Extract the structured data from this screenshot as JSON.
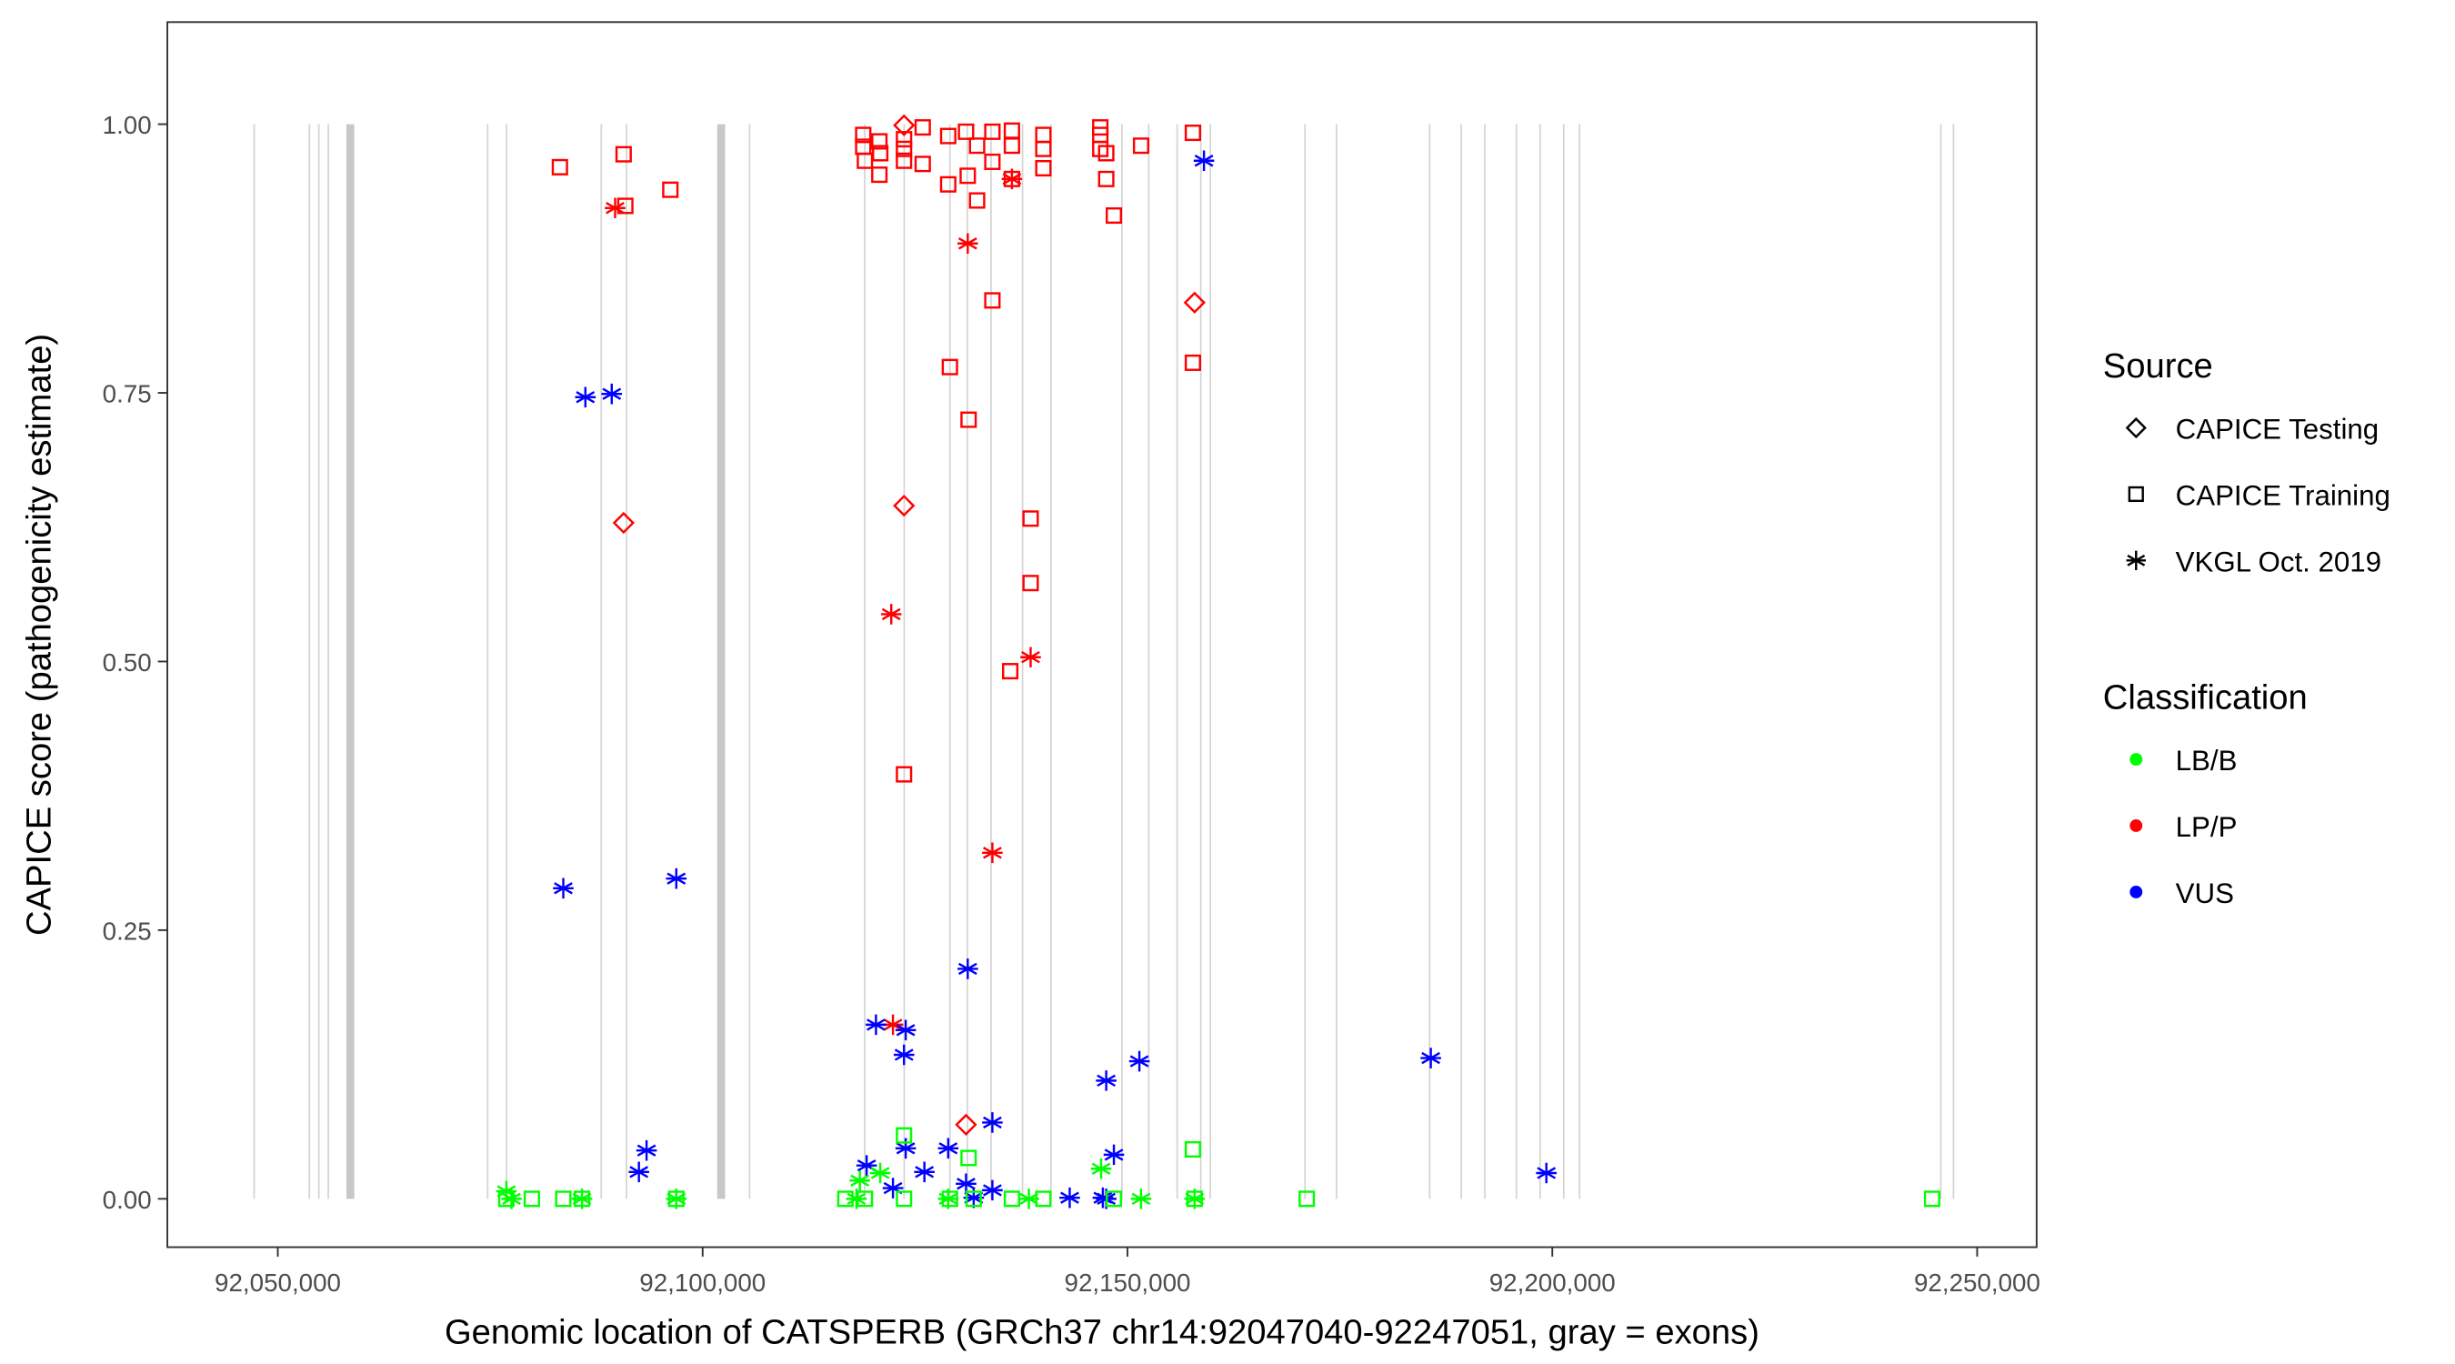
{
  "chart_data": {
    "type": "scatter",
    "xlabel": "Genomic location of CATSPERB (GRCh37 chr14:92047040-92247051, gray = exons)",
    "ylabel": "CAPICE score (pathogenicity estimate)",
    "xlim": [
      92037000,
      92257000
    ],
    "ylim": [
      -0.045,
      1.095
    ],
    "xticks": [
      92050000,
      92100000,
      92150000,
      92200000,
      92250000
    ],
    "xtick_labels": [
      "92,050,000",
      "92,100,000",
      "92,150,000",
      "92,200,000",
      "92,250,000"
    ],
    "yticks": [
      0,
      0.25,
      0.5,
      0.75,
      1.0
    ],
    "ytick_labels": [
      "0.00",
      "0.25",
      "0.50",
      "0.75",
      "1.00"
    ],
    "grid": false,
    "exons": [
      92047214,
      92053714,
      92054828,
      92055942,
      92058542,
      92074698,
      92076927,
      92088069,
      92091040,
      92102182,
      92105524,
      92119080,
      92123723,
      92129108,
      92131151,
      92133936,
      92137650,
      92140993,
      92149350,
      92152506,
      92155849,
      92158635,
      92159749,
      92170891,
      92174605,
      92185562,
      92189276,
      92192061,
      92195775,
      92198561,
      92201346,
      92203203,
      92245728,
      92247213
    ],
    "thick_exons": [
      92058542,
      92102182
    ],
    "legend_position": "right",
    "legend": {
      "source_title": "Source",
      "sources": [
        {
          "key": "testing",
          "label": "CAPICE Testing",
          "shape": "diamond"
        },
        {
          "key": "training",
          "label": "CAPICE Training",
          "shape": "square"
        },
        {
          "key": "vkgl",
          "label": "VKGL Oct. 2019",
          "shape": "asterisk"
        }
      ],
      "class_title": "Classification",
      "classes": [
        {
          "key": "LB/B",
          "label": "LB/B",
          "color": "#00ff00"
        },
        {
          "key": "LP/P",
          "label": "LP/P",
          "color": "#ff0000"
        },
        {
          "key": "VUS",
          "label": "VUS",
          "color": "#0000ff"
        }
      ]
    },
    "series": [
      {
        "source": "training",
        "class": "LP/P",
        "points": [
          [
            92083200,
            0.96
          ],
          [
            92090700,
            0.972
          ],
          [
            92090900,
            0.924
          ],
          [
            92096200,
            0.939
          ],
          [
            92118900,
            0.99
          ],
          [
            92118900,
            0.979
          ],
          [
            92119100,
            0.966
          ],
          [
            92120800,
            0.984
          ],
          [
            92120800,
            0.953
          ],
          [
            92120900,
            0.973
          ],
          [
            92123700,
            0.986
          ],
          [
            92123700,
            0.977
          ],
          [
            92123700,
            0.966
          ],
          [
            92125900,
            0.997
          ],
          [
            92125900,
            0.963
          ],
          [
            92128900,
            0.989
          ],
          [
            92128900,
            0.944
          ],
          [
            92131000,
            0.993
          ],
          [
            92131200,
            0.952
          ],
          [
            92132300,
            0.98
          ],
          [
            92132300,
            0.929
          ],
          [
            92134100,
            0.993
          ],
          [
            92134100,
            0.965
          ],
          [
            92136400,
            0.994
          ],
          [
            92136400,
            0.98
          ],
          [
            92136400,
            0.949
          ],
          [
            92140100,
            0.99
          ],
          [
            92140100,
            0.977
          ],
          [
            92140100,
            0.959
          ],
          [
            92146800,
            0.997
          ],
          [
            92146800,
            0.99
          ],
          [
            92146800,
            0.977
          ],
          [
            92147500,
            0.973
          ],
          [
            92147500,
            0.949
          ],
          [
            92148400,
            0.915
          ],
          [
            92151600,
            0.98
          ],
          [
            92157700,
            0.992
          ],
          [
            92131300,
            0.725
          ],
          [
            92129100,
            0.774
          ],
          [
            92134100,
            0.836
          ],
          [
            92138600,
            0.633
          ],
          [
            92138600,
            0.573
          ],
          [
            92136200,
            0.491
          ],
          [
            92123700,
            0.395
          ],
          [
            92157700,
            0.778
          ]
        ]
      },
      {
        "source": "testing",
        "class": "LP/P",
        "points": [
          [
            92123700,
            0.999
          ],
          [
            92090700,
            0.629
          ],
          [
            92123700,
            0.645
          ],
          [
            92157900,
            0.834
          ],
          [
            92131000,
            0.069
          ]
        ]
      },
      {
        "source": "vkgl",
        "class": "LP/P",
        "points": [
          [
            92089700,
            0.922
          ],
          [
            92131200,
            0.889
          ],
          [
            92136400,
            0.949
          ],
          [
            92122200,
            0.544
          ],
          [
            92138600,
            0.504
          ],
          [
            92134100,
            0.322
          ],
          [
            92122400,
            0.162
          ]
        ]
      },
      {
        "source": "vkgl",
        "class": "VUS",
        "points": [
          [
            92086200,
            0.746
          ],
          [
            92089300,
            0.749
          ],
          [
            92083600,
            0.289
          ],
          [
            92096900,
            0.298
          ],
          [
            92159000,
            0.966
          ],
          [
            92131200,
            0.214
          ],
          [
            92120400,
            0.162
          ],
          [
            92123900,
            0.157
          ],
          [
            92123700,
            0.134
          ],
          [
            92134100,
            0.071
          ],
          [
            92147500,
            0.11
          ],
          [
            92151400,
            0.128
          ],
          [
            92185700,
            0.131
          ],
          [
            92199300,
            0.024
          ],
          [
            92093400,
            0.045
          ],
          [
            92092500,
            0.025
          ],
          [
            92119300,
            0.031
          ],
          [
            92123900,
            0.047
          ],
          [
            92128900,
            0.047
          ],
          [
            92126100,
            0.025
          ],
          [
            92122400,
            0.01
          ],
          [
            92148400,
            0.041
          ],
          [
            92131000,
            0.014
          ],
          [
            92131900,
            0.001
          ],
          [
            92134100,
            0.008
          ],
          [
            92143200,
            0.001
          ],
          [
            92147100,
            0.001
          ],
          [
            92147500,
            0.0
          ]
        ]
      },
      {
        "source": "training",
        "class": "LB/B",
        "points": [
          [
            92076900,
            0.0
          ],
          [
            92079900,
            0.0
          ],
          [
            92083600,
            0.0
          ],
          [
            92085800,
            0.0
          ],
          [
            92096900,
            0.0
          ],
          [
            92116800,
            0.0
          ],
          [
            92119100,
            0.0
          ],
          [
            92123700,
            0.059
          ],
          [
            92131300,
            0.038
          ],
          [
            92129100,
            0.0
          ],
          [
            92136400,
            0.0
          ],
          [
            92140100,
            0.0
          ],
          [
            92148400,
            0.0
          ],
          [
            92157700,
            0.046
          ],
          [
            92157900,
            0.0
          ],
          [
            92171100,
            0.0
          ],
          [
            92244700,
            0.0
          ],
          [
            92123700,
            0.0
          ],
          [
            92131900,
            0.0
          ]
        ]
      },
      {
        "source": "vkgl",
        "class": "LB/B",
        "points": [
          [
            92076900,
            0.007
          ],
          [
            92077500,
            0.0
          ],
          [
            92085800,
            0.0
          ],
          [
            92096900,
            0.0
          ],
          [
            92118500,
            0.017
          ],
          [
            92120900,
            0.024
          ],
          [
            92146900,
            0.028
          ],
          [
            92118100,
            0.0
          ],
          [
            92128900,
            0.0
          ],
          [
            92138400,
            0.0
          ],
          [
            92151600,
            0.0
          ],
          [
            92157900,
            0.0
          ]
        ]
      }
    ]
  }
}
